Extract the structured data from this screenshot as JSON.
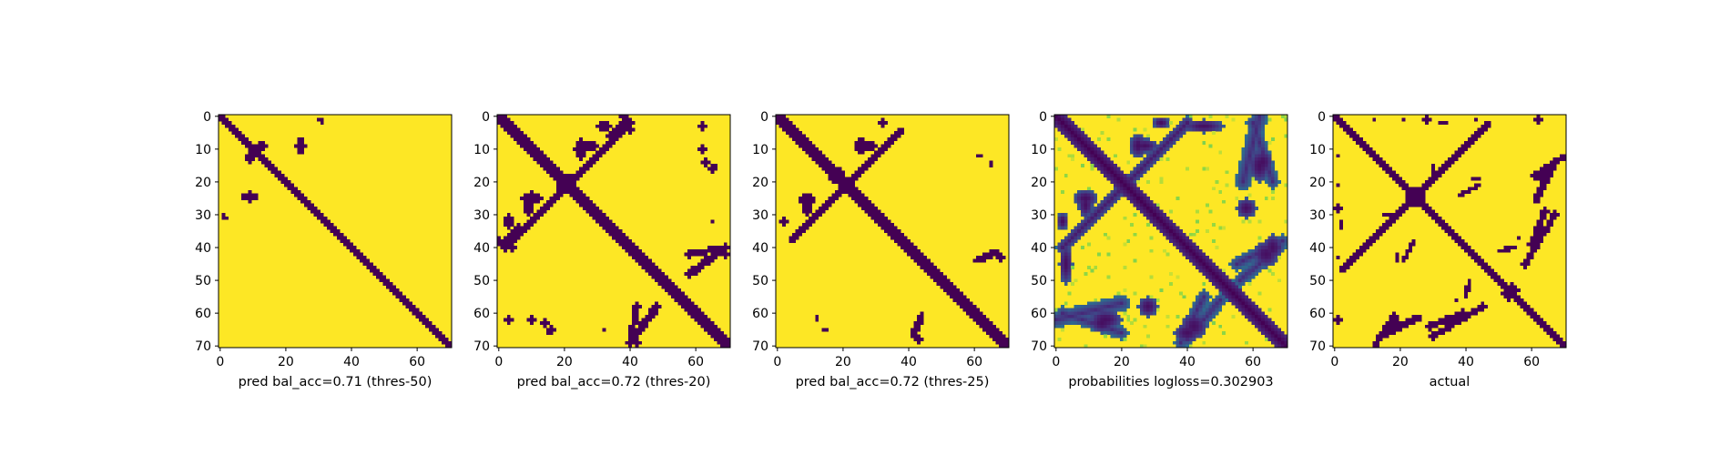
{
  "chart_data": [
    {
      "type": "heatmap",
      "title": "",
      "xlabel": "pred bal_acc=0.71 (thres-50)",
      "ylabel": "",
      "matrix_size": 71,
      "xlim": [
        0,
        70
      ],
      "ylim": [
        70,
        0
      ],
      "x_ticks": [
        0,
        20,
        40,
        60
      ],
      "y_ticks": [
        0,
        10,
        20,
        30,
        40,
        50,
        60,
        70
      ],
      "colormap": "viridis",
      "binary": true,
      "structure": {
        "main_diagonal_halfwidth": 1.4,
        "anti_diagonal": null,
        "blobs": [
          {
            "cx": 9,
            "cy": 24.5,
            "rx": 2.5,
            "ry": 1.6
          },
          {
            "cx": 12.5,
            "cy": 9,
            "rx": 2.2,
            "ry": 1.2
          },
          {
            "cx": 30.5,
            "cy": 1,
            "rx": 1.0,
            "ry": 1.0
          },
          {
            "cx": 1.5,
            "cy": 31,
            "rx": 1.1,
            "ry": 0.8
          }
        ],
        "arcs": [],
        "noise_density": 0.0
      }
    },
    {
      "type": "heatmap",
      "title": "",
      "xlabel": "pred bal_acc=0.72 (thres-20)",
      "ylabel": "",
      "matrix_size": 71,
      "xlim": [
        0,
        70
      ],
      "ylim": [
        70,
        0
      ],
      "x_ticks": [
        0,
        20,
        40,
        60
      ],
      "y_ticks": [
        0,
        10,
        20,
        30,
        40,
        50,
        60,
        70
      ],
      "colormap": "viridis",
      "binary": true,
      "structure": {
        "main_diagonal_halfwidth": 1.8,
        "anti_diagonal": {
          "x0": 40,
          "x1": 2,
          "halfwidth": 1.0
        },
        "blobs": [
          {
            "cx": 27,
            "cy": 9,
            "rx": 3.5,
            "ry": 1.8
          },
          {
            "cx": 19.5,
            "cy": 21,
            "rx": 2.2,
            "ry": 2.2
          },
          {
            "cx": 10,
            "cy": 25,
            "rx": 3,
            "ry": 2
          },
          {
            "cx": 32,
            "cy": 3,
            "rx": 2,
            "ry": 1.5
          },
          {
            "cx": 62,
            "cy": 10,
            "rx": 1.0,
            "ry": 1.0
          },
          {
            "cx": 66,
            "cy": 15,
            "rx": 0.8,
            "ry": 0.8
          },
          {
            "cx": 14,
            "cy": 63,
            "rx": 1.5,
            "ry": 1.2
          },
          {
            "cx": 16,
            "cy": 65,
            "rx": 1.2,
            "ry": 1.0
          },
          {
            "cx": 3,
            "cy": 62,
            "rx": 1.0,
            "ry": 1.0
          },
          {
            "cx": 69,
            "cy": 42,
            "rx": 1.2,
            "ry": 1.2
          },
          {
            "cx": 32,
            "cy": 65,
            "rx": 0.8,
            "ry": 0.8
          }
        ],
        "arcs": [
          {
            "x0": 40,
            "y0": 69,
            "x1": 48,
            "y1": 58,
            "w": 1.2
          },
          {
            "x0": 58,
            "y0": 42,
            "x1": 69,
            "y1": 40,
            "w": 1.0
          },
          {
            "x0": 2,
            "y0": 38,
            "x1": 6,
            "y1": 34,
            "w": 1.0
          },
          {
            "x0": 40,
            "y0": 4,
            "x1": 38,
            "y1": 0,
            "w": 1.0
          }
        ],
        "noise_density": 0.0
      }
    },
    {
      "type": "heatmap",
      "title": "",
      "xlabel": "pred bal_acc=0.72 (thres-25)",
      "ylabel": "",
      "matrix_size": 71,
      "xlim": [
        0,
        70
      ],
      "ylim": [
        70,
        0
      ],
      "x_ticks": [
        0,
        20,
        40,
        60
      ],
      "y_ticks": [
        0,
        10,
        20,
        30,
        40,
        50,
        60,
        70
      ],
      "colormap": "viridis",
      "binary": true,
      "structure": {
        "main_diagonal_halfwidth": 1.6,
        "anti_diagonal": {
          "x0": 38,
          "x1": 4,
          "halfwidth": 0.9
        },
        "blobs": [
          {
            "cx": 27,
            "cy": 9,
            "rx": 3.2,
            "ry": 1.6
          },
          {
            "cx": 17.5,
            "cy": 18.5,
            "rx": 2.2,
            "ry": 1.8
          },
          {
            "cx": 9,
            "cy": 25.5,
            "rx": 3,
            "ry": 2
          },
          {
            "cx": 32,
            "cy": 2,
            "rx": 1.6,
            "ry": 1.2
          },
          {
            "cx": 14.5,
            "cy": 65,
            "rx": 1.2,
            "ry": 1.0
          },
          {
            "cx": 68,
            "cy": 43,
            "rx": 1.2,
            "ry": 1.2
          },
          {
            "cx": 62,
            "cy": 12,
            "rx": 0.7,
            "ry": 0.7
          },
          {
            "cx": 12,
            "cy": 61,
            "rx": 0.6,
            "ry": 0.6
          },
          {
            "cx": 60,
            "cy": 44,
            "rx": 0.6,
            "ry": 0.6
          }
        ],
        "arcs": [
          {
            "x0": 41,
            "y0": 67,
            "x1": 44,
            "y1": 61,
            "w": 0.9
          }
        ],
        "noise_density": 0.0
      }
    },
    {
      "type": "heatmap",
      "title": "",
      "xlabel": "probabilities logloss=0.302903",
      "ylabel": "",
      "matrix_size": 71,
      "xlim": [
        0,
        70
      ],
      "ylim": [
        70,
        0
      ],
      "x_ticks": [
        0,
        20,
        40,
        60
      ],
      "y_ticks": [
        0,
        10,
        20,
        30,
        40,
        50,
        60,
        70
      ],
      "colormap": "viridis",
      "binary": false,
      "value_range": [
        0,
        1
      ],
      "structure": {
        "main_diagonal_halfwidth": 2.2,
        "anti_diagonal": {
          "x0": 40,
          "x1": 2,
          "halfwidth": 1.6
        },
        "blobs": [
          {
            "cx": 27,
            "cy": 9,
            "rx": 4,
            "ry": 2.2
          },
          {
            "cx": 9,
            "cy": 25,
            "rx": 3.5,
            "ry": 2.5
          },
          {
            "cx": 32,
            "cy": 2,
            "rx": 2.5,
            "ry": 1.8
          },
          {
            "cx": 62,
            "cy": 15,
            "rx": 3,
            "ry": 5
          },
          {
            "cx": 66,
            "cy": 40,
            "rx": 3,
            "ry": 4
          },
          {
            "cx": 14,
            "cy": 63,
            "rx": 4,
            "ry": 3
          },
          {
            "cx": 42,
            "cy": 64,
            "rx": 4,
            "ry": 4
          },
          {
            "cx": 3,
            "cy": 45,
            "rx": 2,
            "ry": 6
          },
          {
            "cx": 58,
            "cy": 28,
            "rx": 3,
            "ry": 3
          }
        ],
        "arcs": [
          {
            "x0": 2,
            "y0": 40,
            "x1": 10,
            "y1": 32,
            "w": 2.0
          },
          {
            "x0": 40,
            "y0": 68,
            "x1": 50,
            "y1": 56,
            "w": 2.0
          },
          {
            "x0": 55,
            "y0": 45,
            "x1": 69,
            "y1": 38,
            "w": 2.0
          },
          {
            "x0": 0,
            "y0": 62,
            "x1": 20,
            "y1": 57,
            "w": 2.5
          },
          {
            "x0": 60,
            "y0": 2,
            "x1": 66,
            "y1": 20,
            "w": 2.0
          }
        ],
        "noise_density": 0.35
      }
    },
    {
      "type": "heatmap",
      "title": "",
      "xlabel": "actual",
      "ylabel": "",
      "matrix_size": 71,
      "xlim": [
        0,
        70
      ],
      "ylim": [
        70,
        0
      ],
      "x_ticks": [
        0,
        20,
        40,
        60
      ],
      "y_ticks": [
        0,
        10,
        20,
        30,
        40,
        50,
        60,
        70
      ],
      "colormap": "viridis",
      "binary": true,
      "structure": {
        "main_diagonal_halfwidth": 1.3,
        "anti_diagonal": {
          "x0": 47,
          "x1": 2,
          "halfwidth": 0.9
        },
        "blobs": [
          {
            "cx": 24,
            "cy": 25,
            "rx": 2.5,
            "ry": 2.5
          },
          {
            "cx": 54,
            "cy": 53,
            "rx": 2,
            "ry": 2
          },
          {
            "cx": 62,
            "cy": 18,
            "rx": 2.5,
            "ry": 1.5
          },
          {
            "cx": 33,
            "cy": 2,
            "rx": 1.0,
            "ry": 0.8
          },
          {
            "cx": 21,
            "cy": 1,
            "rx": 0.8,
            "ry": 0.8
          },
          {
            "cx": 12,
            "cy": 1,
            "rx": 0.8,
            "ry": 0.8
          },
          {
            "cx": 43,
            "cy": 1,
            "rx": 0.8,
            "ry": 0.8
          },
          {
            "cx": 61,
            "cy": 0.8,
            "rx": 0.7,
            "ry": 0.7
          },
          {
            "cx": 1,
            "cy": 28,
            "rx": 1.0,
            "ry": 1.0
          },
          {
            "cx": 1,
            "cy": 62,
            "rx": 1.0,
            "ry": 1.0
          },
          {
            "cx": 16,
            "cy": 30,
            "rx": 1.0,
            "ry": 0.8
          },
          {
            "cx": 31,
            "cy": 18,
            "rx": 0.9,
            "ry": 0.7
          },
          {
            "cx": 43,
            "cy": 19,
            "rx": 1.2,
            "ry": 0.8
          },
          {
            "cx": 56,
            "cy": 37,
            "rx": 0.8,
            "ry": 0.8
          }
        ],
        "arcs": [
          {
            "x0": 14,
            "y0": 67,
            "x1": 26,
            "y1": 61,
            "w": 0.9
          },
          {
            "x0": 29,
            "y0": 64,
            "x1": 39,
            "y1": 60,
            "w": 1.0
          },
          {
            "x0": 58,
            "y0": 45,
            "x1": 67,
            "y1": 30,
            "w": 1.0
          },
          {
            "x0": 61,
            "y0": 18,
            "x1": 70,
            "y1": 12,
            "w": 0.9
          },
          {
            "x0": 21,
            "y0": 44,
            "x1": 24,
            "y1": 38,
            "w": 0.8
          },
          {
            "x0": 50,
            "y0": 41,
            "x1": 55,
            "y1": 40,
            "w": 0.7
          }
        ],
        "noise_density": 0.0
      }
    }
  ]
}
